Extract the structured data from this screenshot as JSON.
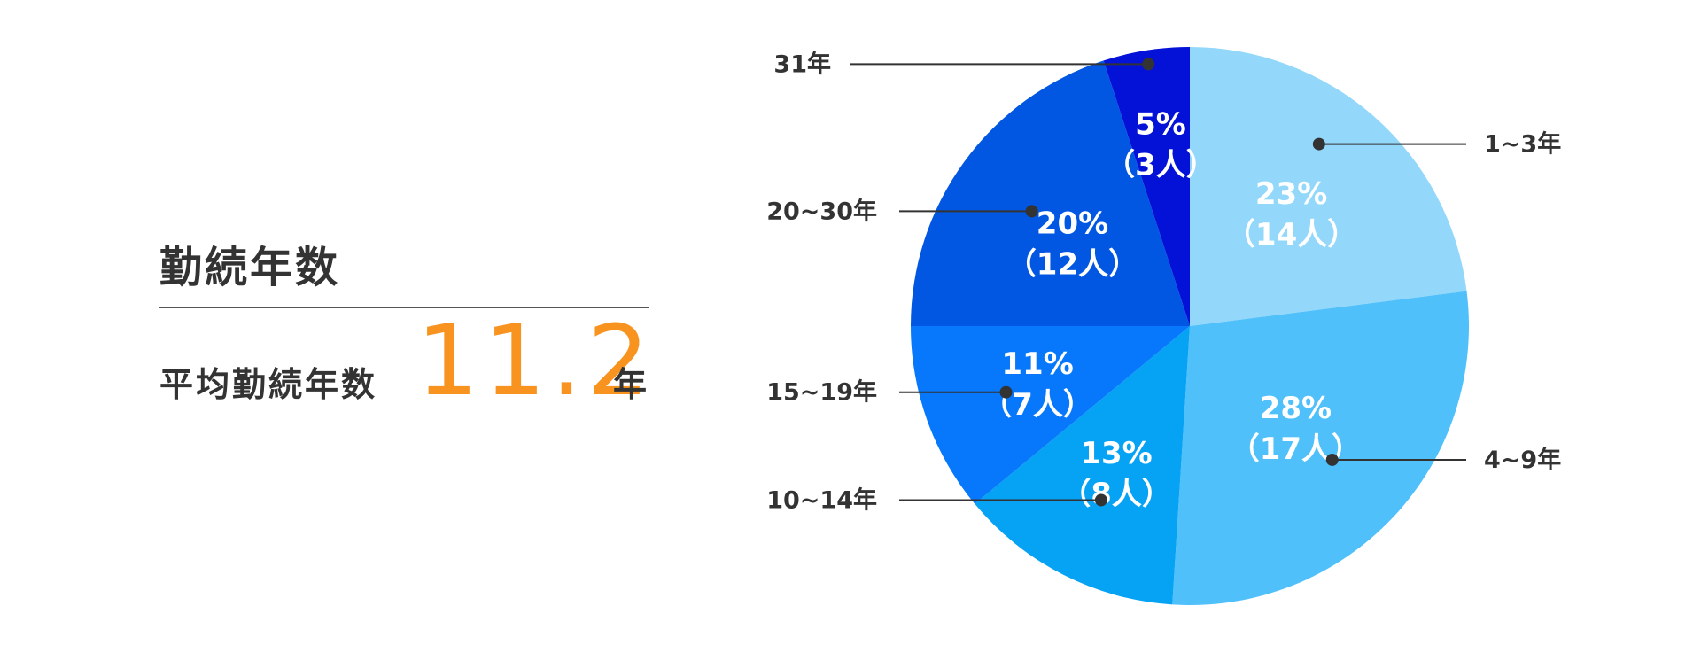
{
  "summary": {
    "title": "勤続年数",
    "average_label": "平均勤続年数",
    "average_value": "11.2",
    "average_unit": "年"
  },
  "chart_data": {
    "type": "pie",
    "title": "",
    "slices": [
      {
        "category": "1~3年",
        "percent": 23,
        "percent_label": "23%",
        "count_label": "（14人）",
        "count": 14,
        "color": "#93d8fb"
      },
      {
        "category": "4~9年",
        "percent": 28,
        "percent_label": "28%",
        "count_label": "（17人）",
        "count": 17,
        "color": "#50c0fb"
      },
      {
        "category": "10~14年",
        "percent": 13,
        "percent_label": "13%",
        "count_label": "（8人）",
        "count": 8,
        "color": "#06a2f4"
      },
      {
        "category": "15~19年",
        "percent": 11,
        "percent_label": "11%",
        "count_label": "（7人）",
        "count": 7,
        "color": "#0778fb"
      },
      {
        "category": "20~30年",
        "percent": 20,
        "percent_label": "20%",
        "count_label": "（12人）",
        "count": 12,
        "color": "#0257e2"
      },
      {
        "category": "31年",
        "percent": 5,
        "percent_label": "5%",
        "count_label": "（3人）",
        "count": 3,
        "color": "#0412d8"
      }
    ],
    "start": "12 o'clock",
    "direction": "clockwise",
    "legend": "callout lines"
  }
}
